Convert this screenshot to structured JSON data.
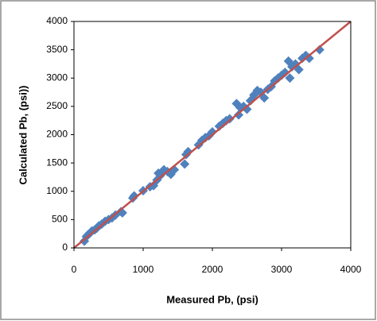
{
  "chart_data": {
    "type": "scatter",
    "x_label": "Measured Pb, (psi)",
    "y_label": "Calculated Pb, (psi))",
    "x": [
      150,
      180,
      200,
      230,
      260,
      300,
      330,
      360,
      400,
      450,
      500,
      550,
      600,
      680,
      700,
      850,
      870,
      1000,
      1100,
      1150,
      1200,
      1220,
      1250,
      1300,
      1350,
      1400,
      1450,
      1600,
      1620,
      1650,
      1800,
      1850,
      1900,
      1950,
      2000,
      2100,
      2150,
      2200,
      2250,
      2350,
      2380,
      2400,
      2450,
      2500,
      2550,
      2600,
      2650,
      2700,
      2750,
      2800,
      2850,
      2900,
      2950,
      3000,
      3050,
      3100,
      3120,
      3150,
      3200,
      3250,
      3300,
      3350,
      3400,
      3550
    ],
    "series": [
      {
        "color": "#4f81bd",
        "values": [
          120,
          200,
          230,
          260,
          300,
          320,
          350,
          390,
          420,
          470,
          500,
          530,
          580,
          640,
          620,
          880,
          920,
          1010,
          1080,
          1100,
          1200,
          1320,
          1280,
          1380,
          1350,
          1300,
          1380,
          1480,
          1650,
          1700,
          1820,
          1900,
          1950,
          1980,
          2050,
          2150,
          2200,
          2250,
          2280,
          2550,
          2350,
          2480,
          2500,
          2450,
          2600,
          2700,
          2780,
          2750,
          2650,
          2800,
          2850,
          2950,
          3000,
          3050,
          3100,
          3300,
          3000,
          3200,
          3250,
          3150,
          3350,
          3400,
          3350,
          3500
        ]
      }
    ],
    "reference_line": {
      "color": "#c0504d",
      "x": [
        0,
        4000
      ],
      "values": [
        0,
        4000
      ]
    },
    "xlim": [
      0,
      4000
    ],
    "xticks": [
      0,
      1000,
      2000,
      3000,
      4000
    ],
    "ylim": [
      0,
      4000
    ],
    "yticks": [
      0,
      500,
      1000,
      1500,
      2000,
      2500,
      3000,
      3500,
      4000
    ],
    "grid": false
  }
}
